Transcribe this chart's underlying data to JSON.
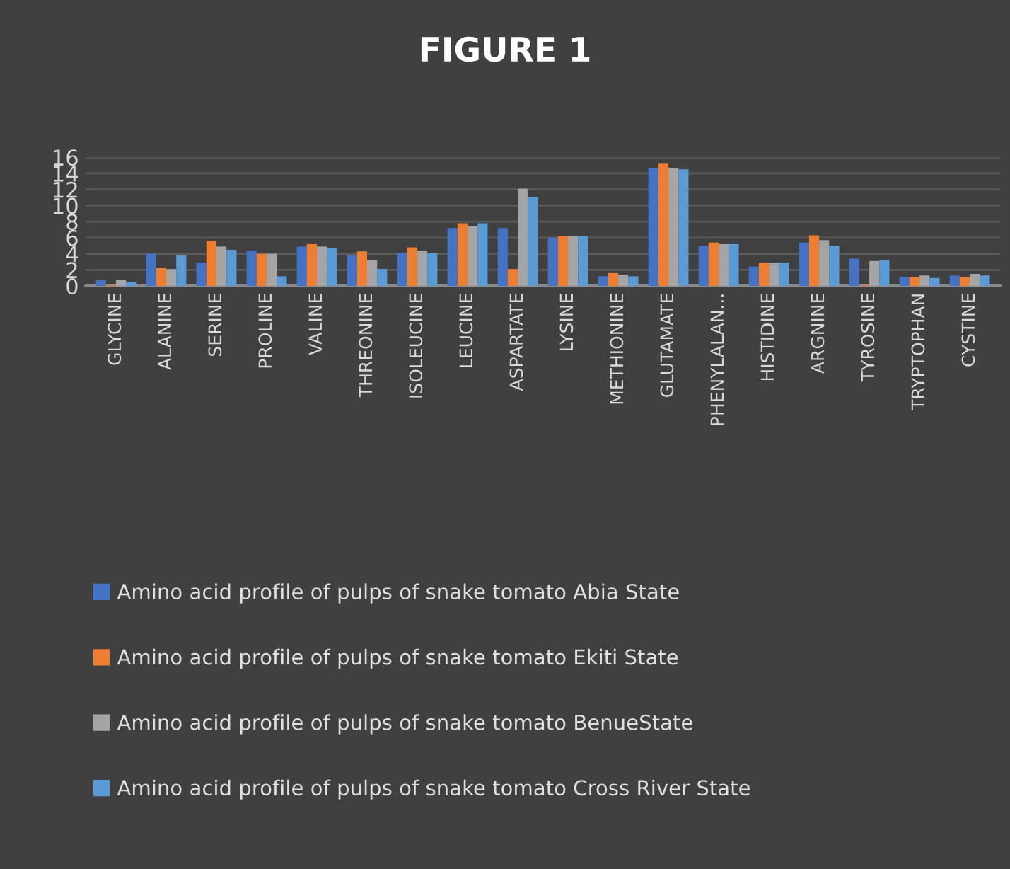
{
  "chart_data": {
    "type": "bar",
    "title": "FIGURE 1",
    "categories": [
      "GLYCINE",
      "ALANINE",
      "SERINE",
      "PROLINE",
      "VALINE",
      "THREONINE",
      "ISOLEUCINE",
      "LEUCINE",
      "ASPARTATE",
      "LYSINE",
      "METHIONINE",
      "GLUTAMATE",
      "PHENYLALAN...",
      "HISTIDINE",
      "ARGNINE",
      "TYROSINE",
      "TRYPTOPHAN",
      "CYSTINE"
    ],
    "series": [
      {
        "name": "Amino acid profile of pulps of snake tomato Abia State",
        "color": "#4472c4",
        "values": [
          0.7,
          4.0,
          2.9,
          4.4,
          4.9,
          3.8,
          4.1,
          7.2,
          7.2,
          6.0,
          1.2,
          14.7,
          5.0,
          2.4,
          5.4,
          3.4,
          1.1,
          1.3
        ]
      },
      {
        "name": "Amino acid profile of pulps of snake tomato Ekiti State",
        "color": "#ed7d31",
        "values": [
          0.1,
          2.2,
          5.6,
          4.0,
          5.2,
          4.3,
          4.8,
          7.8,
          2.1,
          6.2,
          1.6,
          15.2,
          5.4,
          2.9,
          6.3,
          0.1,
          1.1,
          1.1
        ]
      },
      {
        "name": "Amino acid profile of pulps of snake tomato BenueState",
        "color": "#a5a5a5",
        "values": [
          0.8,
          2.1,
          4.9,
          4.0,
          4.9,
          3.2,
          4.4,
          7.4,
          12.1,
          6.2,
          1.4,
          14.7,
          5.2,
          2.9,
          5.7,
          3.1,
          1.3,
          1.5
        ]
      },
      {
        "name": "Amino acid profile of pulps of snake tomato Cross River State",
        "color": "#5b9bd5",
        "values": [
          0.5,
          3.8,
          4.5,
          1.2,
          4.7,
          2.1,
          4.1,
          7.8,
          11.1,
          6.2,
          1.2,
          14.5,
          5.2,
          2.9,
          5.0,
          3.2,
          1.0,
          1.3
        ]
      }
    ],
    "ylim": [
      0,
      16
    ],
    "yticks": [
      0,
      2,
      4,
      6,
      8,
      10,
      12,
      14,
      16
    ],
    "grid": "y",
    "legend": "bottom"
  }
}
